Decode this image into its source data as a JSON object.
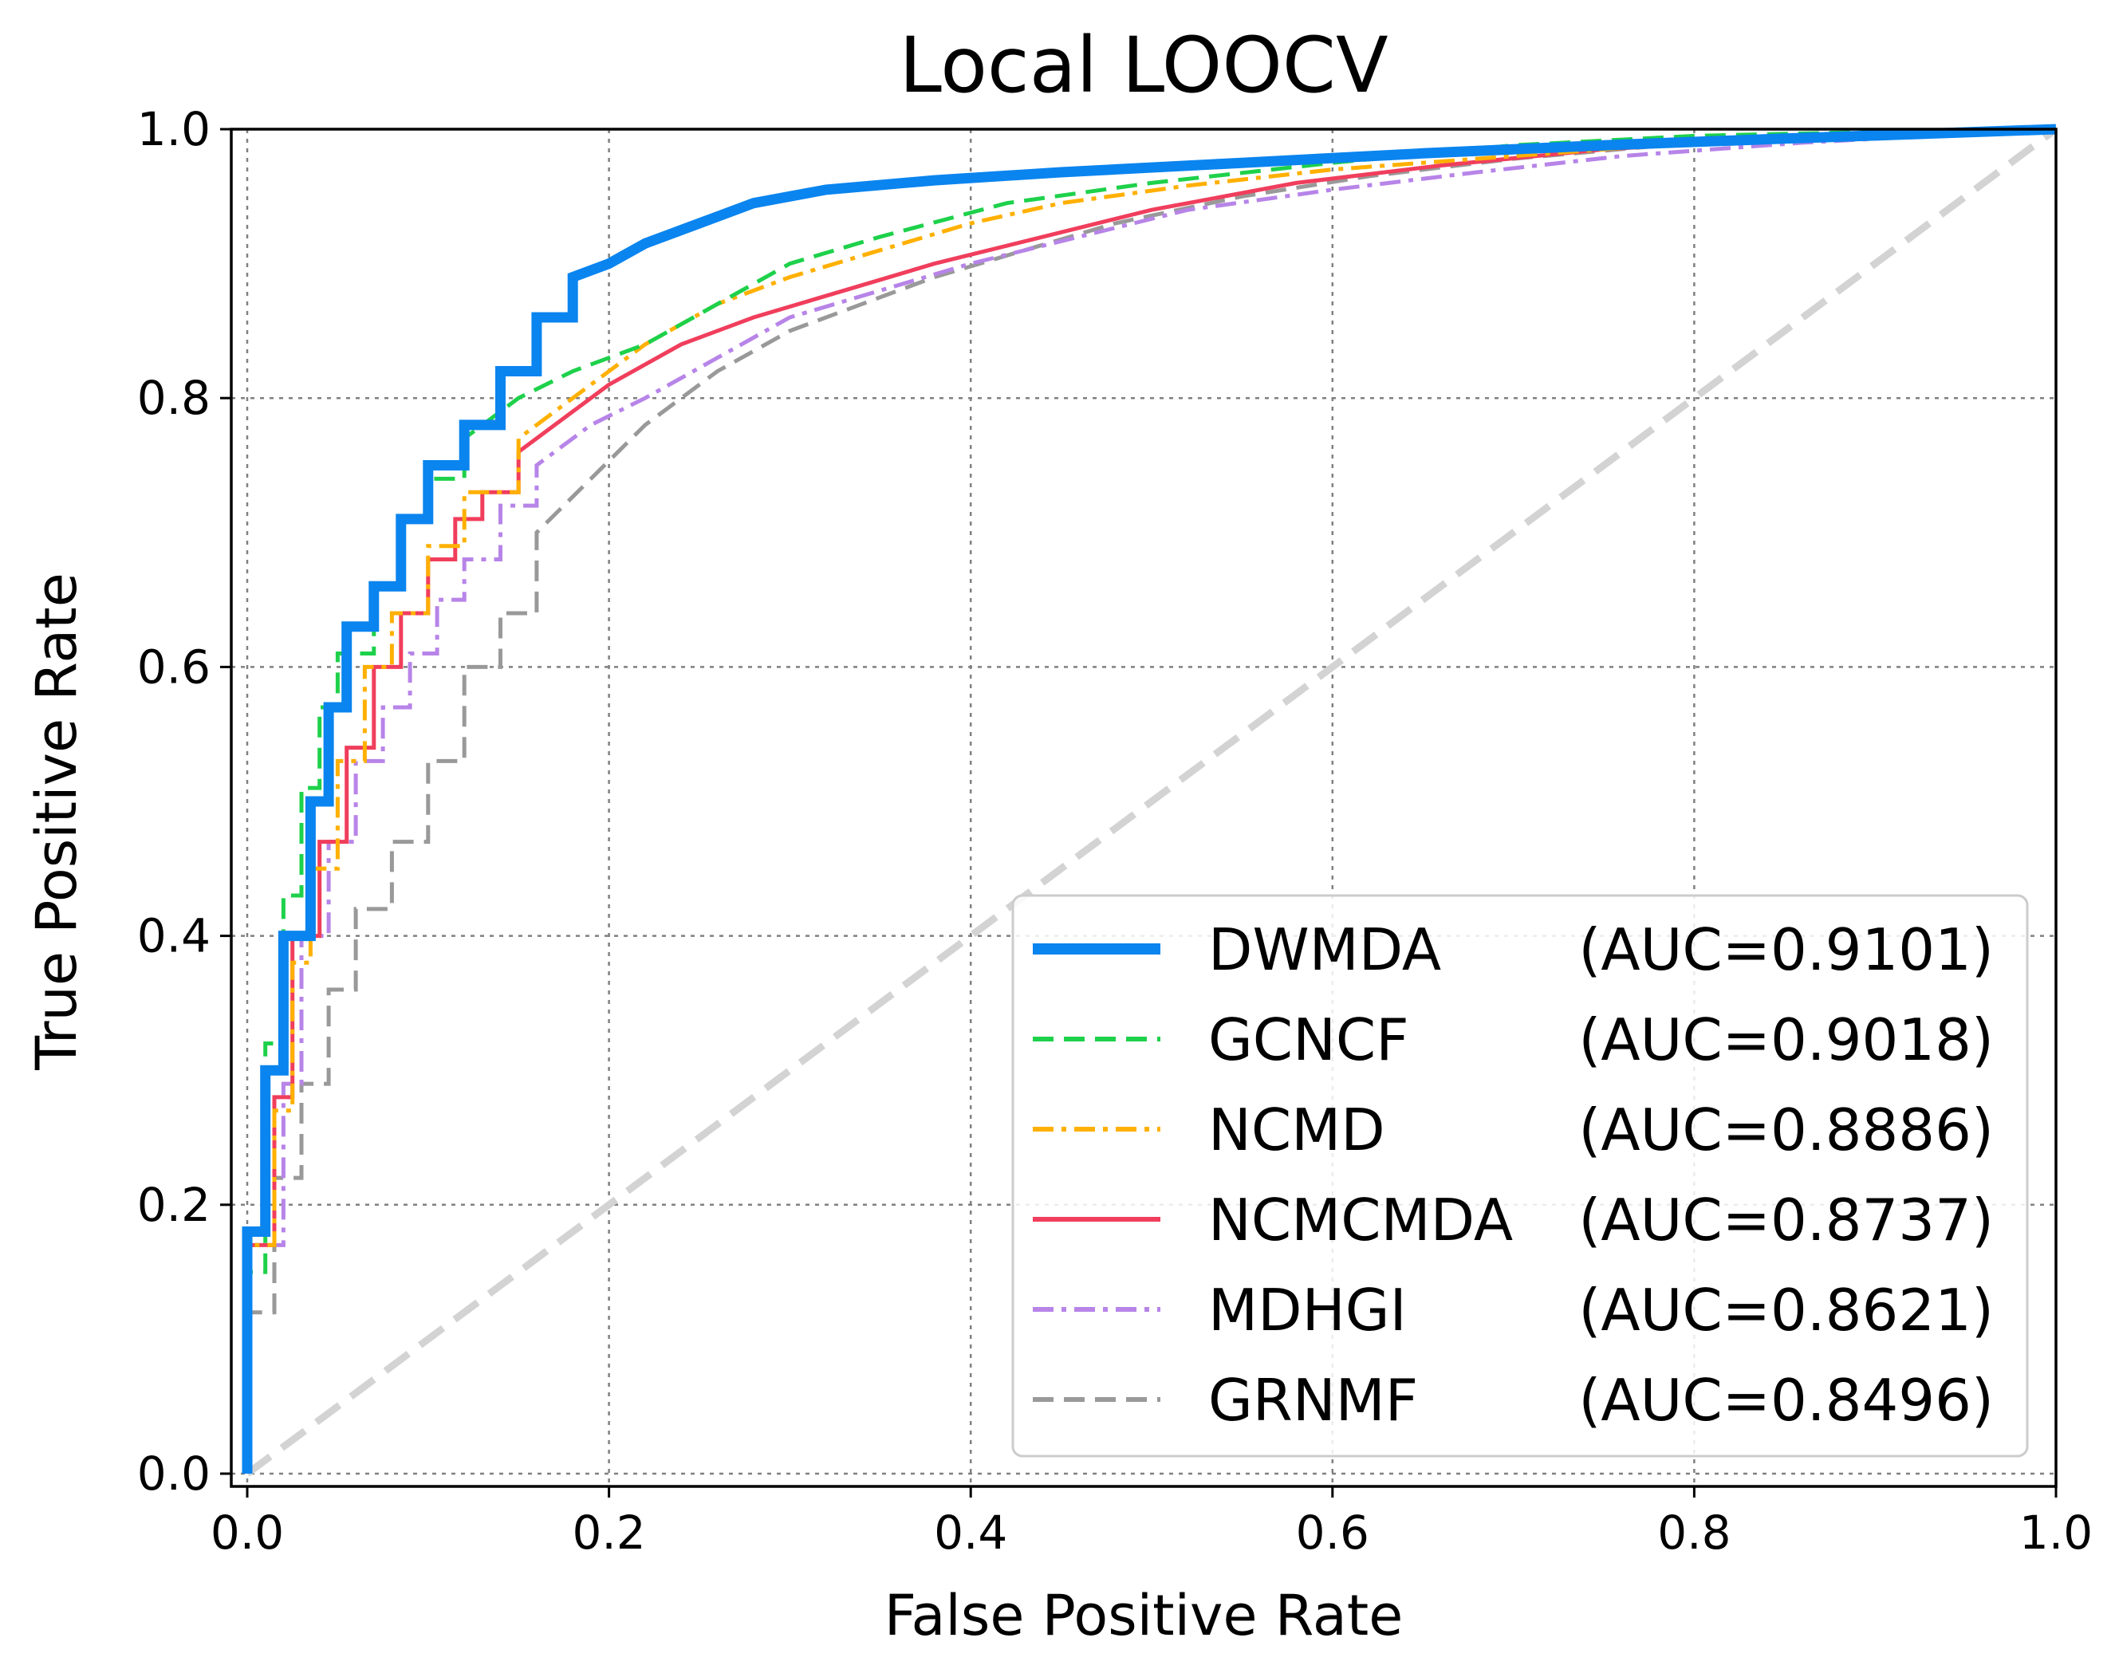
{
  "chart_data": {
    "type": "line",
    "title": "Local LOOCV",
    "xlabel": "False Positive Rate",
    "ylabel": "True Positive Rate",
    "xlim": [
      0.0,
      1.0
    ],
    "ylim": [
      0.0,
      1.0
    ],
    "xticks": [
      "0.0",
      "0.2",
      "0.4",
      "0.6",
      "0.8",
      "1.0"
    ],
    "yticks": [
      "0.0",
      "0.2",
      "0.4",
      "0.6",
      "0.8",
      "1.0"
    ],
    "grid": true,
    "legend_position": "lower-right",
    "reference_line": {
      "x": [
        0,
        1
      ],
      "y": [
        0,
        1
      ],
      "color": "#d3d3d3",
      "style": "dashed"
    },
    "series": [
      {
        "name": "DWMDA",
        "auc_label": "(AUC=0.9101)",
        "color": "#0a84ef",
        "style": "solid",
        "weight": "thick",
        "x": [
          0.0,
          0.0,
          0.01,
          0.01,
          0.02,
          0.02,
          0.035,
          0.035,
          0.045,
          0.045,
          0.055,
          0.055,
          0.07,
          0.07,
          0.085,
          0.085,
          0.1,
          0.1,
          0.12,
          0.12,
          0.14,
          0.14,
          0.16,
          0.16,
          0.18,
          0.18,
          0.2,
          0.22,
          0.25,
          0.28,
          0.32,
          0.38,
          0.45,
          0.55,
          0.65,
          0.75,
          0.85,
          1.0
        ],
        "y": [
          0.0,
          0.18,
          0.18,
          0.3,
          0.3,
          0.4,
          0.4,
          0.5,
          0.5,
          0.57,
          0.57,
          0.63,
          0.63,
          0.66,
          0.66,
          0.71,
          0.71,
          0.75,
          0.75,
          0.78,
          0.78,
          0.82,
          0.82,
          0.86,
          0.86,
          0.89,
          0.9,
          0.915,
          0.93,
          0.945,
          0.955,
          0.962,
          0.968,
          0.975,
          0.982,
          0.988,
          0.993,
          1.0
        ]
      },
      {
        "name": "GCNCF",
        "auc_label": "(AUC=0.9018)",
        "color": "#1ed14b",
        "style": "dashed",
        "weight": "normal",
        "x": [
          0.0,
          0.0,
          0.01,
          0.01,
          0.02,
          0.02,
          0.03,
          0.03,
          0.04,
          0.04,
          0.05,
          0.05,
          0.07,
          0.07,
          0.085,
          0.085,
          0.1,
          0.1,
          0.12,
          0.12,
          0.15,
          0.18,
          0.22,
          0.26,
          0.3,
          0.35,
          0.42,
          0.5,
          0.6,
          0.7,
          0.8,
          0.9,
          1.0
        ],
        "y": [
          0.0,
          0.15,
          0.15,
          0.32,
          0.32,
          0.43,
          0.43,
          0.51,
          0.51,
          0.57,
          0.57,
          0.61,
          0.61,
          0.66,
          0.66,
          0.71,
          0.71,
          0.74,
          0.74,
          0.77,
          0.8,
          0.82,
          0.84,
          0.87,
          0.9,
          0.92,
          0.945,
          0.96,
          0.975,
          0.988,
          0.995,
          0.998,
          1.0
        ]
      },
      {
        "name": "NCMD",
        "auc_label": "(AUC=0.8886)",
        "color": "#ffb000",
        "style": "dashdot",
        "weight": "normal",
        "x": [
          0.0,
          0.0,
          0.015,
          0.015,
          0.025,
          0.025,
          0.035,
          0.035,
          0.05,
          0.05,
          0.065,
          0.065,
          0.08,
          0.08,
          0.1,
          0.1,
          0.12,
          0.12,
          0.15,
          0.15,
          0.18,
          0.22,
          0.26,
          0.3,
          0.35,
          0.4,
          0.45,
          0.52,
          0.6,
          0.7,
          0.8,
          0.9,
          1.0
        ],
        "y": [
          0.0,
          0.17,
          0.17,
          0.27,
          0.27,
          0.38,
          0.38,
          0.45,
          0.45,
          0.53,
          0.53,
          0.6,
          0.6,
          0.64,
          0.64,
          0.69,
          0.69,
          0.73,
          0.73,
          0.77,
          0.8,
          0.84,
          0.87,
          0.89,
          0.91,
          0.93,
          0.945,
          0.958,
          0.97,
          0.98,
          0.99,
          0.996,
          1.0
        ]
      },
      {
        "name": "NCMCMDA",
        "auc_label": "(AUC=0.8737)",
        "color": "#f03e5c",
        "style": "solid",
        "weight": "normal",
        "x": [
          0.0,
          0.0,
          0.015,
          0.015,
          0.025,
          0.025,
          0.04,
          0.04,
          0.055,
          0.055,
          0.07,
          0.07,
          0.085,
          0.085,
          0.1,
          0.1,
          0.115,
          0.115,
          0.13,
          0.13,
          0.15,
          0.15,
          0.17,
          0.2,
          0.24,
          0.28,
          0.33,
          0.38,
          0.44,
          0.5,
          0.58,
          0.66,
          0.75,
          0.85,
          1.0
        ],
        "y": [
          0.0,
          0.17,
          0.17,
          0.28,
          0.28,
          0.4,
          0.4,
          0.47,
          0.47,
          0.54,
          0.54,
          0.6,
          0.6,
          0.64,
          0.64,
          0.68,
          0.68,
          0.71,
          0.71,
          0.73,
          0.73,
          0.76,
          0.78,
          0.81,
          0.84,
          0.86,
          0.88,
          0.9,
          0.92,
          0.94,
          0.96,
          0.973,
          0.985,
          0.993,
          1.0
        ]
      },
      {
        "name": "MDHGI",
        "auc_label": "(AUC=0.8621)",
        "color": "#b784e8",
        "style": "dashdot",
        "weight": "normal",
        "x": [
          0.0,
          0.0,
          0.02,
          0.02,
          0.03,
          0.03,
          0.045,
          0.045,
          0.06,
          0.06,
          0.075,
          0.075,
          0.09,
          0.09,
          0.105,
          0.105,
          0.12,
          0.12,
          0.14,
          0.14,
          0.16,
          0.16,
          0.19,
          0.22,
          0.26,
          0.3,
          0.35,
          0.4,
          0.46,
          0.52,
          0.6,
          0.68,
          0.76,
          0.86,
          1.0
        ],
        "y": [
          0.0,
          0.17,
          0.17,
          0.29,
          0.29,
          0.4,
          0.4,
          0.47,
          0.47,
          0.53,
          0.53,
          0.57,
          0.57,
          0.61,
          0.61,
          0.65,
          0.65,
          0.68,
          0.68,
          0.72,
          0.72,
          0.75,
          0.78,
          0.8,
          0.83,
          0.86,
          0.88,
          0.9,
          0.92,
          0.94,
          0.955,
          0.968,
          0.98,
          0.99,
          1.0
        ]
      },
      {
        "name": "GRNMF",
        "auc_label": "(AUC=0.8496)",
        "color": "#999999",
        "style": "dashed",
        "weight": "normal",
        "x": [
          0.0,
          0.0,
          0.015,
          0.015,
          0.03,
          0.03,
          0.045,
          0.045,
          0.06,
          0.06,
          0.08,
          0.08,
          0.1,
          0.1,
          0.12,
          0.12,
          0.14,
          0.14,
          0.16,
          0.16,
          0.19,
          0.22,
          0.26,
          0.3,
          0.34,
          0.38,
          0.43,
          0.48,
          0.55,
          0.62,
          0.7,
          0.8,
          0.9,
          1.0
        ],
        "y": [
          0.0,
          0.12,
          0.12,
          0.22,
          0.22,
          0.29,
          0.29,
          0.36,
          0.36,
          0.42,
          0.42,
          0.47,
          0.47,
          0.53,
          0.53,
          0.6,
          0.6,
          0.64,
          0.64,
          0.7,
          0.74,
          0.78,
          0.82,
          0.85,
          0.87,
          0.89,
          0.91,
          0.93,
          0.95,
          0.965,
          0.978,
          0.99,
          0.996,
          1.0
        ]
      }
    ]
  }
}
